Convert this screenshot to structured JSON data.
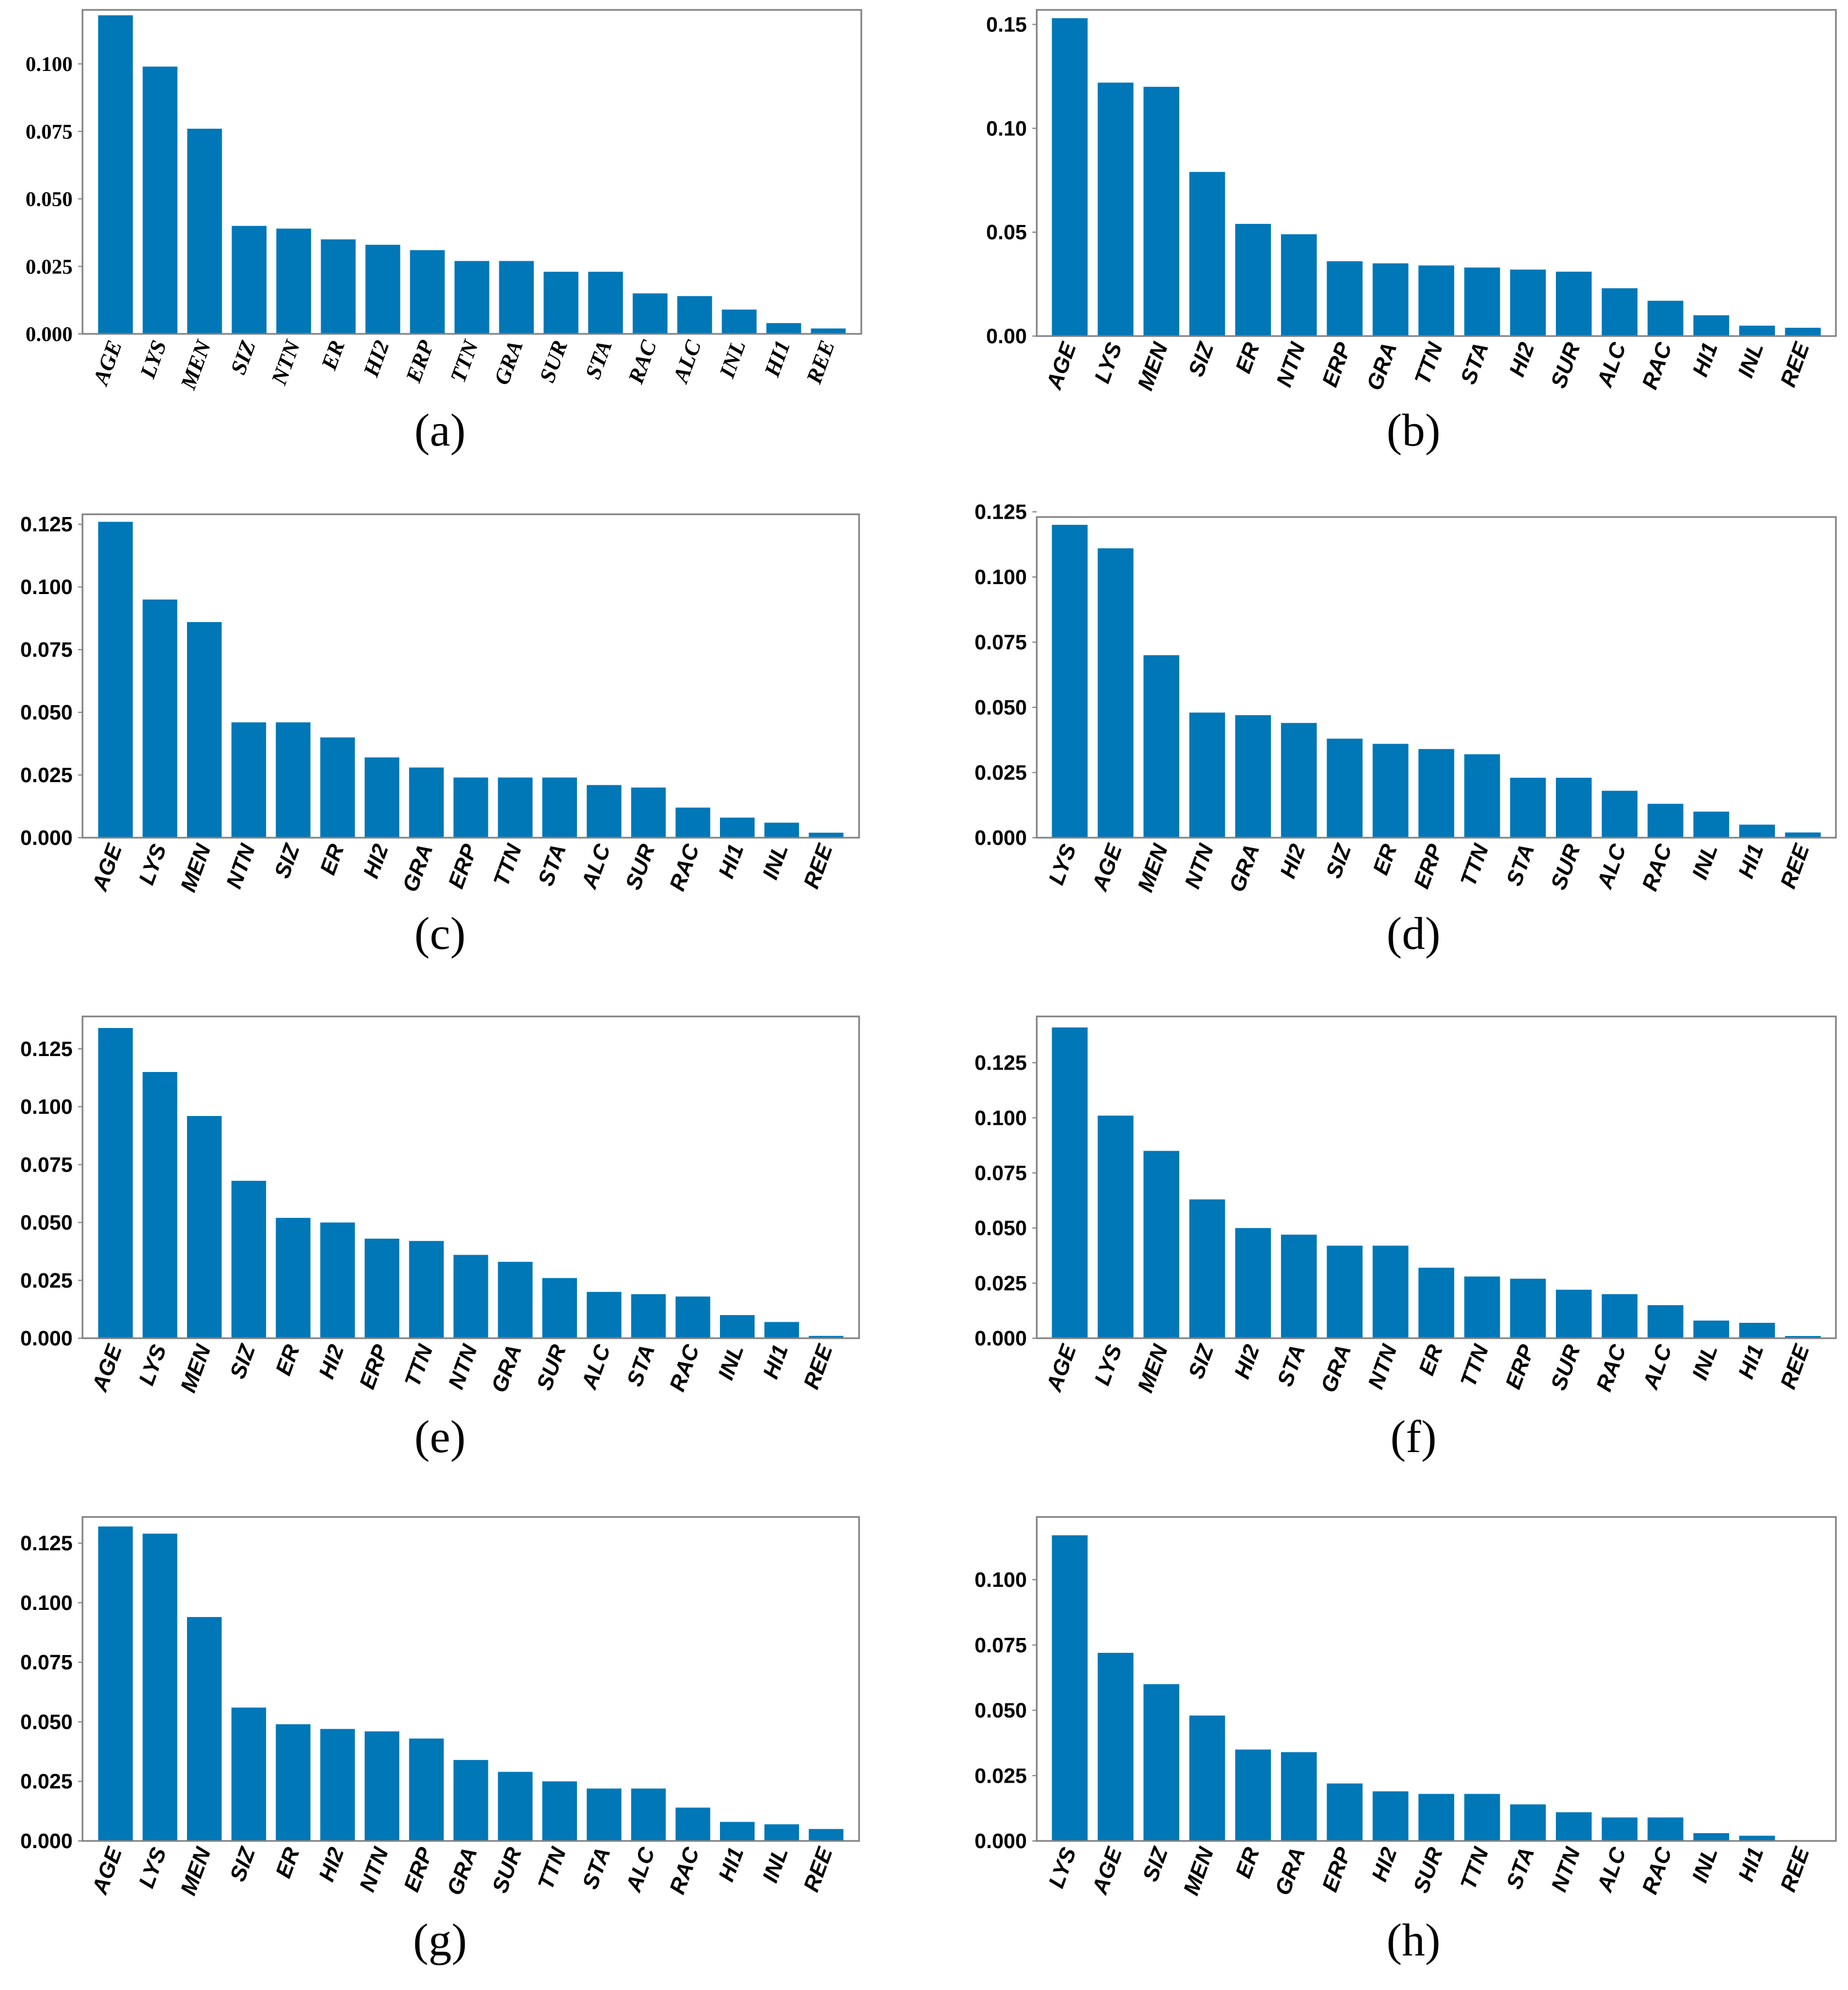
{
  "colors": {
    "bar": "#0077b7",
    "axes": "#808080",
    "text": "#000000",
    "background": "#ffffff"
  },
  "chart_data": [
    {
      "panel": "(a)",
      "type": "bar",
      "tick_style": "serif-bold",
      "ylim": [
        0,
        0.12
      ],
      "yticks": [
        "0.000",
        "0.025",
        "0.050",
        "0.075",
        "0.100"
      ],
      "categories": [
        "AGE",
        "LYS",
        "MEN",
        "SIZ",
        "NTN",
        "ER",
        "HI2",
        "ERP",
        "TTN",
        "GRA",
        "SUR",
        "STA",
        "RAC",
        "ALC",
        "INL",
        "HI1",
        "REE"
      ],
      "values": [
        0.118,
        0.099,
        0.076,
        0.04,
        0.039,
        0.035,
        0.033,
        0.031,
        0.027,
        0.027,
        0.023,
        0.023,
        0.015,
        0.014,
        0.009,
        0.004,
        0.002
      ]
    },
    {
      "panel": "(b)",
      "type": "bar",
      "tick_style": "sans-bold",
      "ylim": [
        0,
        0.157
      ],
      "yticks": [
        "0.00",
        "0.05",
        "0.10",
        "0.15"
      ],
      "categories": [
        "AGE",
        "LYS",
        "MEN",
        "SIZ",
        "ER",
        "NTN",
        "ERP",
        "GRA",
        "TTN",
        "STA",
        "HI2",
        "SUR",
        "ALC",
        "RAC",
        "HI1",
        "INL",
        "REE"
      ],
      "values": [
        0.153,
        0.122,
        0.12,
        0.079,
        0.054,
        0.049,
        0.036,
        0.035,
        0.034,
        0.033,
        0.032,
        0.031,
        0.023,
        0.017,
        0.01,
        0.005,
        0.004
      ]
    },
    {
      "panel": "(c)",
      "type": "bar",
      "tick_style": "sans-bold",
      "ylim": [
        0,
        0.129
      ],
      "yticks": [
        "0.000",
        "0.025",
        "0.050",
        "0.075",
        "0.100",
        "0.125"
      ],
      "categories": [
        "AGE",
        "LYS",
        "MEN",
        "NTN",
        "SIZ",
        "ER",
        "HI2",
        "GRA",
        "ERP",
        "TTN",
        "STA",
        "ALC",
        "SUR",
        "RAC",
        "HI1",
        "INL",
        "REE"
      ],
      "values": [
        0.126,
        0.095,
        0.086,
        0.046,
        0.046,
        0.04,
        0.032,
        0.028,
        0.024,
        0.024,
        0.024,
        0.021,
        0.02,
        0.012,
        0.008,
        0.006,
        0.002
      ]
    },
    {
      "panel": "(d)",
      "type": "bar",
      "tick_style": "sans-bold",
      "ylim": [
        0,
        0.123
      ],
      "yticks": [
        "0.000",
        "0.025",
        "0.050",
        "0.075",
        "0.100",
        "0.125"
      ],
      "categories": [
        "LYS",
        "AGE",
        "MEN",
        "NTN",
        "GRA",
        "HI2",
        "SIZ",
        "ER",
        "ERP",
        "TTN",
        "STA",
        "SUR",
        "ALC",
        "RAC",
        "INL",
        "HI1",
        "REE"
      ],
      "values": [
        0.12,
        0.111,
        0.07,
        0.048,
        0.047,
        0.044,
        0.038,
        0.036,
        0.034,
        0.032,
        0.023,
        0.023,
        0.018,
        0.013,
        0.01,
        0.005,
        0.002
      ]
    },
    {
      "panel": "(e)",
      "type": "bar",
      "tick_style": "sans-bold",
      "ylim": [
        0,
        0.139
      ],
      "yticks": [
        "0.000",
        "0.025",
        "0.050",
        "0.075",
        "0.100",
        "0.125"
      ],
      "categories": [
        "AGE",
        "LYS",
        "MEN",
        "SIZ",
        "ER",
        "HI2",
        "ERP",
        "TTN",
        "NTN",
        "GRA",
        "SUR",
        "ALC",
        "STA",
        "RAC",
        "INL",
        "HI1",
        "REE"
      ],
      "values": [
        0.134,
        0.115,
        0.096,
        0.068,
        0.052,
        0.05,
        0.043,
        0.042,
        0.036,
        0.033,
        0.026,
        0.02,
        0.019,
        0.018,
        0.01,
        0.007,
        0.001
      ]
    },
    {
      "panel": "(f)",
      "type": "bar",
      "tick_style": "sans-bold",
      "ylim": [
        0,
        0.146
      ],
      "yticks": [
        "0.000",
        "0.025",
        "0.050",
        "0.075",
        "0.100",
        "0.125"
      ],
      "categories": [
        "AGE",
        "LYS",
        "MEN",
        "SIZ",
        "HI2",
        "STA",
        "GRA",
        "NTN",
        "ER",
        "TTN",
        "ERP",
        "SUR",
        "RAC",
        "ALC",
        "INL",
        "HI1",
        "REE"
      ],
      "values": [
        0.141,
        0.101,
        0.085,
        0.063,
        0.05,
        0.047,
        0.042,
        0.042,
        0.032,
        0.028,
        0.027,
        0.022,
        0.02,
        0.015,
        0.008,
        0.007,
        0.001
      ]
    },
    {
      "panel": "(g)",
      "type": "bar",
      "tick_style": "sans-bold",
      "ylim": [
        0,
        0.136
      ],
      "yticks": [
        "0.000",
        "0.025",
        "0.050",
        "0.075",
        "0.100",
        "0.125"
      ],
      "categories": [
        "AGE",
        "LYS",
        "MEN",
        "SIZ",
        "ER",
        "HI2",
        "NTN",
        "ERP",
        "GRA",
        "SUR",
        "TTN",
        "STA",
        "ALC",
        "RAC",
        "HI1",
        "INL",
        "REE"
      ],
      "values": [
        0.132,
        0.129,
        0.094,
        0.056,
        0.049,
        0.047,
        0.046,
        0.043,
        0.034,
        0.029,
        0.025,
        0.022,
        0.022,
        0.014,
        0.008,
        0.007,
        0.005
      ]
    },
    {
      "panel": "(h)",
      "type": "bar",
      "tick_style": "sans-bold",
      "ylim": [
        0,
        0.124
      ],
      "yticks": [
        "0.000",
        "0.025",
        "0.050",
        "0.075",
        "0.100"
      ],
      "categories": [
        "LYS",
        "AGE",
        "SIZ",
        "MEN",
        "ER",
        "GRA",
        "ERP",
        "HI2",
        "SUR",
        "TTN",
        "STA",
        "NTN",
        "ALC",
        "RAC",
        "INL",
        "HI1",
        "REE"
      ],
      "values": [
        0.117,
        0.072,
        0.06,
        0.048,
        0.035,
        0.034,
        0.022,
        0.019,
        0.018,
        0.018,
        0.014,
        0.011,
        0.009,
        0.009,
        0.003,
        0.002,
        0.0
      ]
    }
  ]
}
